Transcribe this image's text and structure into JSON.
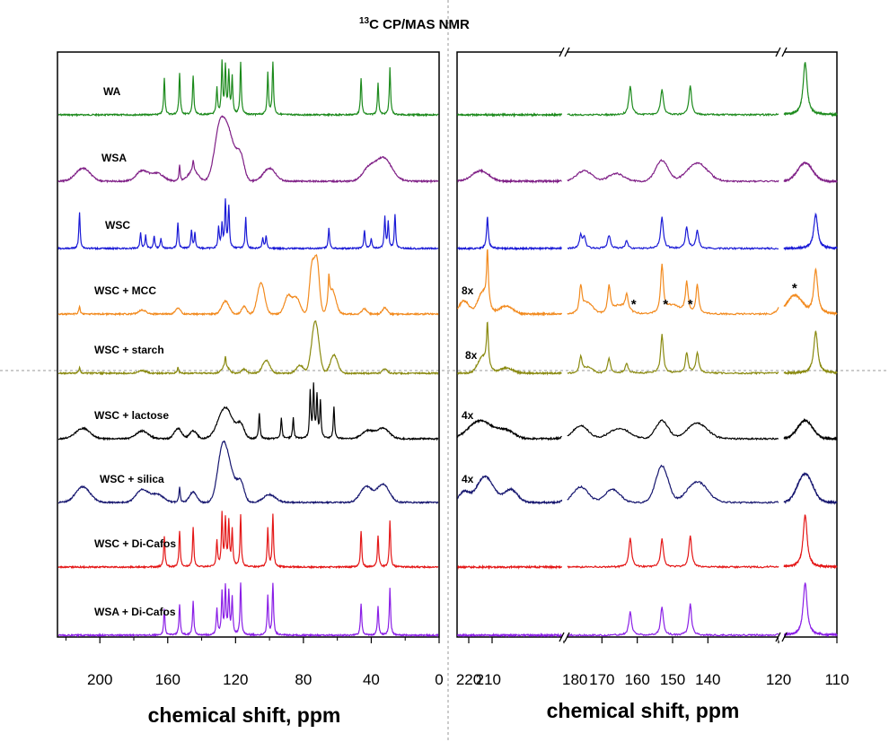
{
  "chart_data": [
    {
      "type": "line",
      "title": "13C CP/MAS NMR",
      "title_parts": {
        "superscript": "13",
        "main": "C CP/MAS NMR"
      },
      "xlabel": "chemical shift, ppm",
      "xlim": [
        225,
        0
      ],
      "xticks": [
        200,
        160,
        120,
        80,
        40,
        0
      ],
      "ylabel": "",
      "series": [
        {
          "name": "WA",
          "color": "#1c8a1c",
          "peaks": [
            [
              162,
              0.7
            ],
            [
              153,
              0.8
            ],
            [
              145,
              0.75
            ],
            [
              131,
              0.5
            ],
            [
              128,
              1
            ],
            [
              126,
              0.9
            ],
            [
              124,
              0.8
            ],
            [
              122,
              0.7
            ],
            [
              117,
              1
            ],
            [
              101,
              0.8
            ],
            [
              98,
              1
            ],
            [
              46,
              0.7
            ],
            [
              36,
              0.6
            ],
            [
              29,
              0.9
            ]
          ],
          "broad": []
        },
        {
          "name": "WSA",
          "color": "#7f1f86",
          "peaks": [
            [
              153,
              0.3
            ],
            [
              145,
              0.2
            ]
          ],
          "broad": [
            [
              210,
              6,
              0.25
            ],
            [
              175,
              5,
              0.2
            ],
            [
              166,
              5,
              0.15
            ],
            [
              145,
              4,
              0.2
            ],
            [
              130,
              4,
              0.6
            ],
            [
              125,
              6,
              1
            ],
            [
              117,
              3,
              0.4
            ],
            [
              100,
              5,
              0.25
            ],
            [
              42,
              5,
              0.2
            ],
            [
              33,
              7,
              0.45
            ]
          ]
        },
        {
          "name": "WSC",
          "color": "#1a1ad6",
          "peaks": [
            [
              212,
              0.7
            ],
            [
              176,
              0.3
            ],
            [
              173,
              0.25
            ],
            [
              168,
              0.25
            ],
            [
              164,
              0.2
            ],
            [
              154,
              0.5
            ],
            [
              146,
              0.35
            ],
            [
              144,
              0.3
            ],
            [
              130,
              0.4
            ],
            [
              128,
              0.45
            ],
            [
              126,
              0.9
            ],
            [
              124,
              0.8
            ],
            [
              114,
              0.6
            ],
            [
              104,
              0.2
            ],
            [
              102,
              0.25
            ],
            [
              65,
              0.4
            ],
            [
              44,
              0.35
            ],
            [
              40,
              0.2
            ],
            [
              32,
              0.6
            ],
            [
              30,
              0.5
            ],
            [
              26,
              0.65
            ]
          ],
          "broad": []
        },
        {
          "name": "WSC + MCC",
          "color": "#f28a1e",
          "peaks": [
            [
              212,
              0.15
            ],
            [
              65,
              0.5
            ]
          ],
          "broad": [
            [
              175,
              3,
              0.08
            ],
            [
              154,
              2,
              0.12
            ],
            [
              126,
              3,
              0.25
            ],
            [
              115,
              2,
              0.15
            ],
            [
              105,
              3,
              0.6
            ],
            [
              89,
              3,
              0.35
            ],
            [
              84,
              3,
              0.3
            ],
            [
              75,
              2,
              0.9
            ],
            [
              72,
              2,
              1
            ],
            [
              63,
              3,
              0.45
            ],
            [
              44,
              2,
              0.1
            ],
            [
              32,
              2,
              0.12
            ]
          ]
        },
        {
          "name": "WSC + starch",
          "color": "#8a8a10",
          "peaks": [
            [
              212,
              0.12
            ],
            [
              154,
              0.12
            ],
            [
              126,
              0.2
            ]
          ],
          "broad": [
            [
              175,
              3,
              0.05
            ],
            [
              126,
              3,
              0.12
            ],
            [
              115,
              2,
              0.08
            ],
            [
              102,
              3,
              0.25
            ],
            [
              82,
              3,
              0.15
            ],
            [
              73,
              3,
              1
            ],
            [
              62,
              3,
              0.35
            ],
            [
              32,
              2,
              0.08
            ]
          ]
        },
        {
          "name": "WSC + lactose",
          "color": "#000000",
          "peaks": [
            [
              106,
              0.5
            ],
            [
              93,
              0.4
            ],
            [
              86,
              0.4
            ],
            [
              76,
              0.9
            ],
            [
              74,
              1
            ],
            [
              72,
              0.8
            ],
            [
              70,
              0.7
            ],
            [
              62,
              0.6
            ]
          ],
          "broad": [
            [
              210,
              6,
              0.2
            ],
            [
              175,
              5,
              0.15
            ],
            [
              154,
              3,
              0.2
            ],
            [
              145,
              3,
              0.15
            ],
            [
              126,
              6,
              0.6
            ],
            [
              117,
              3,
              0.25
            ],
            [
              42,
              5,
              0.15
            ],
            [
              33,
              5,
              0.2
            ]
          ]
        },
        {
          "name": "WSC + silica",
          "color": "#16166f",
          "peaks": [
            [
              153,
              0.3
            ]
          ],
          "broad": [
            [
              210,
              6,
              0.3
            ],
            [
              175,
              5,
              0.25
            ],
            [
              166,
              5,
              0.15
            ],
            [
              145,
              3,
              0.2
            ],
            [
              128,
              4,
              0.8
            ],
            [
              124,
              5,
              0.6
            ],
            [
              117,
              3,
              0.35
            ],
            [
              100,
              5,
              0.15
            ],
            [
              43,
              5,
              0.3
            ],
            [
              33,
              5,
              0.35
            ]
          ]
        },
        {
          "name": "WSC + Di-Cafos",
          "color": "#e41717",
          "peaks": [
            [
              162,
              0.6
            ],
            [
              153,
              0.7
            ],
            [
              145,
              0.75
            ],
            [
              131,
              0.5
            ],
            [
              128,
              1
            ],
            [
              126,
              0.9
            ],
            [
              124,
              0.85
            ],
            [
              122,
              0.7
            ],
            [
              117,
              1
            ],
            [
              101,
              0.75
            ],
            [
              98,
              1
            ],
            [
              46,
              0.7
            ],
            [
              36,
              0.6
            ],
            [
              29,
              0.9
            ]
          ],
          "broad": []
        },
        {
          "name": "WSA + Di-Cafos",
          "color": "#8a1ee6",
          "peaks": [
            [
              162,
              0.5
            ],
            [
              153,
              0.6
            ],
            [
              145,
              0.65
            ],
            [
              131,
              0.5
            ],
            [
              128,
              0.8
            ],
            [
              126,
              0.9
            ],
            [
              124,
              0.8
            ],
            [
              122,
              0.7
            ],
            [
              117,
              1
            ],
            [
              101,
              0.75
            ],
            [
              98,
              1
            ],
            [
              46,
              0.6
            ],
            [
              36,
              0.55
            ],
            [
              29,
              0.9
            ]
          ],
          "broad": []
        }
      ]
    },
    {
      "type": "line",
      "title": "",
      "xlabel": "chemical shift, ppm",
      "axis_break": true,
      "segments": [
        [
          225,
          180
        ],
        [
          180,
          120
        ],
        [
          120,
          110
        ]
      ],
      "xticks": [
        220,
        210,
        180,
        170,
        160,
        150,
        140,
        120,
        110
      ],
      "scale_labels": [
        {
          "series": "WSC + MCC",
          "text": "8x"
        },
        {
          "series": "WSC + starch",
          "text": "8x"
        },
        {
          "series": "WSC + lactose",
          "text": "4x"
        },
        {
          "series": "WSC + silica",
          "text": "4x"
        }
      ],
      "annotations": [
        {
          "text": "*",
          "series": "WSC + MCC",
          "x": 161
        },
        {
          "text": "*",
          "series": "WSC + MCC",
          "x": 152
        },
        {
          "text": "*",
          "series": "WSC + MCC",
          "x": 145
        },
        {
          "text": "*",
          "series": "WSC + MCC",
          "x": 118
        }
      ],
      "zoom_series": [
        {
          "name": "WA",
          "color": "#1c8a1c",
          "peaks": [
            [
              162,
              0.55
            ],
            [
              153,
              0.5
            ],
            [
              145,
              0.55
            ],
            [
              116,
              1
            ]
          ],
          "broad": []
        },
        {
          "name": "WSA",
          "color": "#7f1f86",
          "peaks": [],
          "broad": [
            [
              215,
              5,
              0.2
            ],
            [
              175,
              3,
              0.2
            ],
            [
              166,
              3,
              0.15
            ],
            [
              153,
              2.5,
              0.4
            ],
            [
              143,
              4,
              0.35
            ],
            [
              116,
              2,
              0.35
            ]
          ]
        },
        {
          "name": "WSC",
          "color": "#1a1ad6",
          "peaks": [
            [
              212,
              0.6
            ],
            [
              176,
              0.25
            ],
            [
              175,
              0.2
            ],
            [
              168,
              0.25
            ],
            [
              163,
              0.15
            ],
            [
              153,
              0.6
            ],
            [
              146,
              0.4
            ],
            [
              143,
              0.35
            ],
            [
              114,
              0.65
            ]
          ],
          "broad": []
        },
        {
          "name": "WSC + MCC",
          "color": "#f28a1e",
          "peaks": [
            [
              212,
              1
            ],
            [
              176,
              0.5
            ],
            [
              168,
              0.5
            ],
            [
              163,
              0.3
            ],
            [
              153,
              0.9
            ],
            [
              146,
              0.6
            ],
            [
              143,
              0.55
            ],
            [
              114,
              0.85
            ]
          ],
          "broad": [
            [
              222,
              3,
              0.25
            ],
            [
              214,
              3,
              0.4
            ],
            [
              204,
              4,
              0.15
            ],
            [
              174,
              2,
              0.2
            ],
            [
              165,
              3,
              0.15
            ],
            [
              150,
              3,
              0.15
            ],
            [
              118,
              2,
              0.35
            ]
          ]
        },
        {
          "name": "WSC + starch",
          "color": "#8a8a10",
          "peaks": [
            [
              212,
              0.8
            ],
            [
              176,
              0.3
            ],
            [
              168,
              0.3
            ],
            [
              163,
              0.2
            ],
            [
              153,
              0.75
            ],
            [
              146,
              0.4
            ],
            [
              143,
              0.4
            ],
            [
              114,
              0.8
            ]
          ],
          "broad": [
            [
              214,
              3,
              0.3
            ],
            [
              204,
              4,
              0.1
            ],
            [
              174,
              2,
              0.1
            ]
          ]
        },
        {
          "name": "WSC + lactose",
          "color": "#000000",
          "peaks": [],
          "broad": [
            [
              215,
              7,
              0.35
            ],
            [
              204,
              5,
              0.15
            ],
            [
              176,
              3,
              0.25
            ],
            [
              165,
              4,
              0.2
            ],
            [
              153,
              2.5,
              0.35
            ],
            [
              143,
              4,
              0.3
            ],
            [
              116,
              2,
              0.35
            ]
          ]
        },
        {
          "name": "WSC + silica",
          "color": "#16166f",
          "peaks": [],
          "broad": [
            [
              222,
              3,
              0.2
            ],
            [
              213,
              5,
              0.5
            ],
            [
              202,
              4,
              0.25
            ],
            [
              176,
              3,
              0.3
            ],
            [
              167,
              3,
              0.25
            ],
            [
              153,
              2.5,
              0.7
            ],
            [
              143,
              4,
              0.4
            ],
            [
              116,
              2,
              0.55
            ]
          ]
        },
        {
          "name": "WSC + Di-Cafos",
          "color": "#e41717",
          "peaks": [
            [
              162,
              0.55
            ],
            [
              153,
              0.55
            ],
            [
              145,
              0.6
            ],
            [
              116,
              1
            ]
          ],
          "broad": []
        },
        {
          "name": "WSA + Di-Cafos",
          "color": "#8a1ee6",
          "peaks": [
            [
              162,
              0.45
            ],
            [
              153,
              0.55
            ],
            [
              145,
              0.6
            ],
            [
              116,
              1
            ]
          ],
          "broad": []
        }
      ]
    }
  ]
}
